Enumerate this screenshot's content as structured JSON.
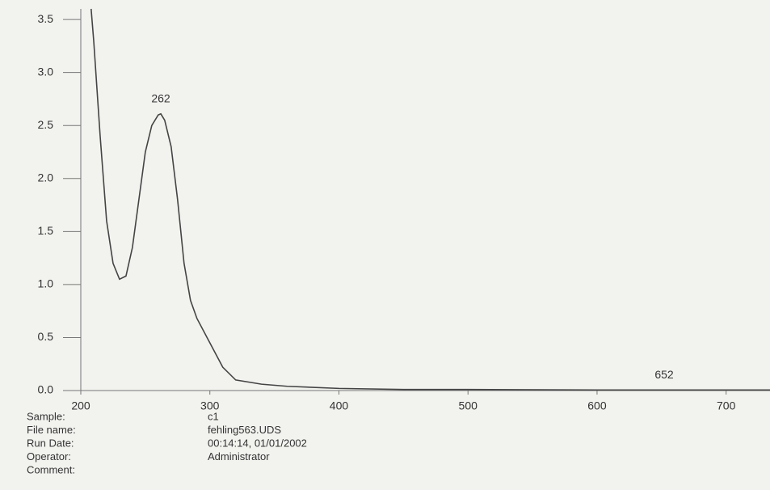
{
  "chart_data": {
    "type": "line",
    "x": [
      208,
      210,
      215,
      220,
      225,
      230,
      235,
      240,
      245,
      250,
      255,
      260,
      262,
      265,
      270,
      275,
      280,
      285,
      290,
      300,
      310,
      320,
      340,
      360,
      400,
      450,
      500,
      600,
      652,
      700,
      734
    ],
    "values": [
      3.6,
      3.3,
      2.4,
      1.6,
      1.2,
      1.05,
      1.08,
      1.35,
      1.8,
      2.25,
      2.5,
      2.6,
      2.61,
      2.55,
      2.3,
      1.8,
      1.2,
      0.85,
      0.68,
      0.45,
      0.22,
      0.1,
      0.06,
      0.04,
      0.02,
      0.01,
      0.01,
      0.005,
      0.005,
      0.005,
      0.005
    ],
    "color": "#444444",
    "peaks": [
      262,
      652
    ],
    "xlim": [
      200,
      734
    ],
    "xticks": [
      200,
      300,
      400,
      500,
      600,
      700
    ],
    "ylim": [
      0,
      3.6
    ],
    "yticks": [
      {
        "value": 0,
        "label": "0.0"
      },
      0.5,
      {
        "value": 1,
        "label": "1.0"
      },
      1.5,
      {
        "value": 2,
        "label": "2.0"
      },
      2.5,
      {
        "value": 3,
        "label": "3.0"
      },
      3.5
    ]
  },
  "info": [
    {
      "label": "Sample:",
      "value": "c1"
    },
    {
      "label": "File name:",
      "value": "fehling563.UDS"
    },
    {
      "label": "Run Date:",
      "value": "00:14:14, 01/01/2002"
    },
    {
      "label": "Operator:",
      "value": "Administrator"
    },
    {
      "label": "Comment:"
    }
  ]
}
